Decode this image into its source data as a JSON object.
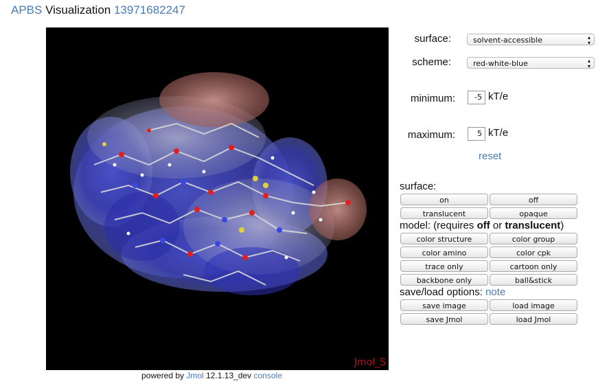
{
  "header": {
    "apbs": "APBS",
    "visualization": "Visualization",
    "job_id": "13971682247"
  },
  "viewer": {
    "watermark": "Jmol_S",
    "powered_by": "powered by",
    "jmol_link": "Jmol",
    "version": "12.1.13_dev",
    "console_link": "console"
  },
  "controls": {
    "surface_label": "surface:",
    "surface_value": "solvent-accessible",
    "scheme_label": "scheme:",
    "scheme_value": "red-white-blue",
    "minimum_label": "minimum:",
    "minimum_value": "-5",
    "maximum_label": "maximum:",
    "maximum_value": "5",
    "unit": "kT/e",
    "reset": "reset"
  },
  "surface_section": {
    "title": "surface:",
    "on": "on",
    "off": "off",
    "translucent": "translucent",
    "opaque": "opaque"
  },
  "model_section": {
    "title_pre": "model: (requires",
    "title_off": "off",
    "title_or": "or",
    "title_translucent": "translucent",
    "title_post": ")",
    "color_structure": "color structure",
    "color_group": "color group",
    "color_amino": "color amino",
    "color_cpk": "color cpk",
    "trace_only": "trace only",
    "cartoon_only": "cartoon only",
    "backbone_only": "backbone only",
    "ball_stick": "ball&stick"
  },
  "saveload_section": {
    "title": "save/load options:",
    "note": "note",
    "save_image": "save image",
    "load_image": "load image",
    "save_jmol": "save Jmol",
    "load_jmol": "load Jmol"
  },
  "colors": {
    "link": "#4a7db8",
    "watermark": "#b01515",
    "viewer_bg": "#000000"
  }
}
